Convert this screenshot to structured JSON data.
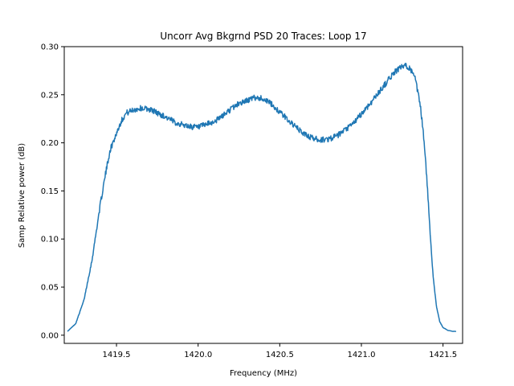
{
  "chart_data": {
    "type": "line",
    "title": "Uncorr Avg Bkgrnd PSD 20 Traces: Loop 17",
    "xlabel": "Frequency (MHz)",
    "ylabel": "Samp Relative power (dB)",
    "xlim": [
      1419.18,
      1421.62
    ],
    "ylim": [
      -0.0085,
      0.3
    ],
    "xticks": [
      1419.5,
      1420.0,
      1420.5,
      1421.0,
      1421.5
    ],
    "xtick_labels": [
      "1419.5",
      "1420.0",
      "1420.5",
      "1421.0",
      "1421.5"
    ],
    "yticks": [
      0.0,
      0.05,
      0.1,
      0.15,
      0.2,
      0.25,
      0.3
    ],
    "ytick_labels": [
      "0.00",
      "0.05",
      "0.10",
      "0.15",
      "0.20",
      "0.25",
      "0.30"
    ],
    "grid": false,
    "line_color": "#1f77b4",
    "series": [
      {
        "x": [
          1419.2,
          1419.25,
          1419.3,
          1419.35,
          1419.4,
          1419.43,
          1419.46,
          1419.5,
          1419.53,
          1419.56,
          1419.6,
          1419.65,
          1419.7,
          1419.73,
          1419.75,
          1419.8,
          1419.85,
          1419.9,
          1419.95,
          1420.0,
          1420.05,
          1420.1,
          1420.15,
          1420.2,
          1420.25,
          1420.3,
          1420.33,
          1420.35,
          1420.4,
          1420.45,
          1420.5,
          1420.55,
          1420.6,
          1420.65,
          1420.7,
          1420.75,
          1420.8,
          1420.85,
          1420.9,
          1420.95,
          1421.0,
          1421.05,
          1421.1,
          1421.15,
          1421.2,
          1421.22,
          1421.25,
          1421.28,
          1421.3,
          1421.33,
          1421.36,
          1421.38,
          1421.4,
          1421.42,
          1421.44,
          1421.46,
          1421.48,
          1421.5,
          1421.53,
          1421.56,
          1421.58
        ],
        "y": [
          0.004,
          0.012,
          0.036,
          0.078,
          0.135,
          0.165,
          0.192,
          0.21,
          0.223,
          0.231,
          0.234,
          0.236,
          0.235,
          0.233,
          0.231,
          0.227,
          0.222,
          0.219,
          0.217,
          0.216,
          0.219,
          0.222,
          0.228,
          0.235,
          0.241,
          0.244,
          0.246,
          0.247,
          0.246,
          0.24,
          0.232,
          0.224,
          0.216,
          0.209,
          0.205,
          0.203,
          0.204,
          0.207,
          0.213,
          0.22,
          0.23,
          0.24,
          0.251,
          0.262,
          0.273,
          0.276,
          0.279,
          0.28,
          0.277,
          0.266,
          0.24,
          0.21,
          0.165,
          0.11,
          0.06,
          0.03,
          0.014,
          0.008,
          0.005,
          0.004,
          0.004
        ]
      }
    ]
  }
}
